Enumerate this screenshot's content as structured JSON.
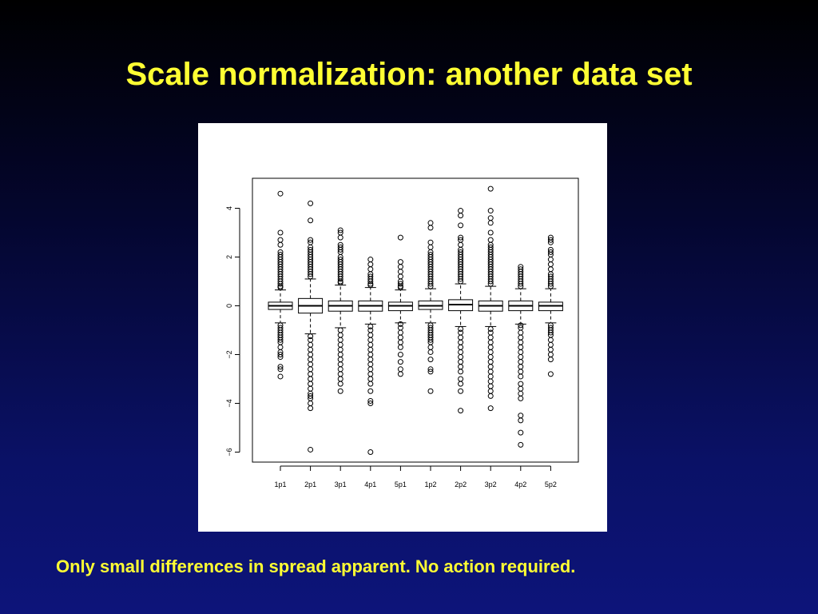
{
  "slide": {
    "title": "Scale normalization: another data set",
    "caption": "Only small differences in spread apparent. No action required."
  },
  "colors": {
    "title": "#ffff33",
    "caption": "#ffff33",
    "plot_background": "#ffffff",
    "ink": "#000000"
  },
  "chart_data": {
    "type": "box",
    "title": "",
    "xlabel": "",
    "ylabel": "",
    "ylim": [
      -6.5,
      5.2
    ],
    "yticks": [
      -6,
      -4,
      -2,
      0,
      2,
      4
    ],
    "categories": [
      "1p1",
      "2p1",
      "3p1",
      "4p1",
      "5p1",
      "1p2",
      "2p2",
      "3p2",
      "4p2",
      "5p2"
    ],
    "boxes": [
      {
        "name": "1p1",
        "q1": -0.15,
        "median": 0.0,
        "q3": 0.15,
        "whisker_low": -0.7,
        "whisker_high": 0.65,
        "outliers": [
          4.6,
          3.0,
          2.7,
          2.5,
          2.2,
          2.1,
          2.0,
          1.9,
          1.8,
          1.7,
          1.6,
          1.5,
          1.4,
          1.3,
          1.2,
          1.1,
          1.0,
          0.9,
          0.8,
          0.75,
          -0.8,
          -0.9,
          -1.0,
          -1.1,
          -1.2,
          -1.3,
          -1.4,
          -1.5,
          -1.7,
          -1.9,
          -2.0,
          -2.1,
          -2.5,
          -2.6,
          -2.9
        ]
      },
      {
        "name": "2p1",
        "q1": -0.3,
        "median": 0.0,
        "q3": 0.3,
        "whisker_low": -1.15,
        "whisker_high": 1.1,
        "outliers": [
          4.2,
          3.5,
          2.7,
          2.6,
          2.4,
          2.3,
          2.2,
          2.1,
          2.0,
          1.9,
          1.8,
          1.7,
          1.6,
          1.5,
          1.4,
          1.3,
          1.2,
          -1.25,
          -1.4,
          -1.6,
          -1.8,
          -2.0,
          -2.2,
          -2.4,
          -2.6,
          -2.8,
          -3.0,
          -3.2,
          -3.4,
          -3.6,
          -3.7,
          -3.8,
          -4.0,
          -4.2,
          -5.9
        ]
      },
      {
        "name": "3p1",
        "q1": -0.22,
        "median": 0.0,
        "q3": 0.2,
        "whisker_low": -0.9,
        "whisker_high": 0.85,
        "outliers": [
          3.1,
          3.0,
          2.8,
          2.5,
          2.4,
          2.3,
          2.2,
          2.0,
          1.9,
          1.8,
          1.7,
          1.6,
          1.5,
          1.4,
          1.3,
          1.2,
          1.1,
          1.0,
          0.95,
          -1.0,
          -1.2,
          -1.4,
          -1.6,
          -1.8,
          -2.0,
          -2.2,
          -2.4,
          -2.6,
          -2.8,
          -3.0,
          -3.2,
          -3.5
        ]
      },
      {
        "name": "4p1",
        "q1": -0.22,
        "median": 0.0,
        "q3": 0.2,
        "whisker_low": -0.75,
        "whisker_high": 0.75,
        "outliers": [
          1.9,
          1.7,
          1.5,
          1.3,
          1.2,
          1.1,
          1.0,
          0.9,
          0.85,
          -0.85,
          -1.0,
          -1.2,
          -1.4,
          -1.6,
          -1.8,
          -2.0,
          -2.2,
          -2.4,
          -2.6,
          -2.8,
          -3.0,
          -3.2,
          -3.5,
          -3.9,
          -4.0,
          -6.0
        ]
      },
      {
        "name": "5p1",
        "q1": -0.2,
        "median": 0.0,
        "q3": 0.15,
        "whisker_low": -0.7,
        "whisker_high": 0.65,
        "outliers": [
          2.8,
          1.8,
          1.6,
          1.4,
          1.2,
          1.0,
          0.9,
          0.8,
          0.75,
          -0.75,
          -0.9,
          -1.1,
          -1.3,
          -1.5,
          -1.7,
          -2.0,
          -2.3,
          -2.6,
          -2.8
        ]
      },
      {
        "name": "1p2",
        "q1": -0.15,
        "median": 0.0,
        "q3": 0.2,
        "whisker_low": -0.7,
        "whisker_high": 0.7,
        "outliers": [
          3.4,
          3.2,
          2.6,
          2.4,
          2.2,
          2.1,
          2.0,
          1.9,
          1.8,
          1.7,
          1.6,
          1.5,
          1.4,
          1.3,
          1.2,
          1.1,
          1.0,
          0.9,
          0.8,
          -0.8,
          -0.9,
          -1.0,
          -1.1,
          -1.2,
          -1.3,
          -1.4,
          -1.5,
          -1.7,
          -1.9,
          -2.2,
          -2.6,
          -2.7,
          -3.5
        ]
      },
      {
        "name": "2p2",
        "q1": -0.2,
        "median": 0.05,
        "q3": 0.25,
        "whisker_low": -0.85,
        "whisker_high": 0.9,
        "outliers": [
          3.9,
          3.7,
          3.3,
          2.8,
          2.7,
          2.5,
          2.3,
          2.2,
          2.1,
          2.0,
          1.9,
          1.8,
          1.7,
          1.6,
          1.5,
          1.4,
          1.3,
          1.2,
          1.1,
          1.0,
          -0.95,
          -1.1,
          -1.3,
          -1.5,
          -1.7,
          -1.9,
          -2.1,
          -2.3,
          -2.5,
          -2.7,
          -3.0,
          -3.2,
          -3.5,
          -4.3
        ]
      },
      {
        "name": "3p2",
        "q1": -0.22,
        "median": 0.0,
        "q3": 0.2,
        "whisker_low": -0.85,
        "whisker_high": 0.8,
        "outliers": [
          4.8,
          3.9,
          3.6,
          3.4,
          3.0,
          2.7,
          2.5,
          2.4,
          2.3,
          2.2,
          2.1,
          2.0,
          1.9,
          1.8,
          1.7,
          1.6,
          1.5,
          1.4,
          1.3,
          1.2,
          1.1,
          1.0,
          0.9,
          -0.95,
          -1.1,
          -1.3,
          -1.5,
          -1.7,
          -1.9,
          -2.1,
          -2.3,
          -2.5,
          -2.7,
          -2.9,
          -3.1,
          -3.3,
          -3.5,
          -3.7,
          -4.2
        ]
      },
      {
        "name": "4p2",
        "q1": -0.2,
        "median": 0.0,
        "q3": 0.2,
        "whisker_low": -0.75,
        "whisker_high": 0.7,
        "outliers": [
          1.6,
          1.5,
          1.4,
          1.3,
          1.2,
          1.1,
          1.0,
          0.9,
          0.8,
          -0.8,
          -0.9,
          -1.1,
          -1.3,
          -1.5,
          -1.7,
          -1.9,
          -2.1,
          -2.3,
          -2.5,
          -2.7,
          -2.9,
          -3.2,
          -3.4,
          -3.6,
          -3.8,
          -4.5,
          -4.7,
          -5.2,
          -5.7
        ]
      },
      {
        "name": "5p2",
        "q1": -0.2,
        "median": 0.0,
        "q3": 0.15,
        "whisker_low": -0.7,
        "whisker_high": 0.7,
        "outliers": [
          2.8,
          2.7,
          2.6,
          2.3,
          2.2,
          2.1,
          1.9,
          1.7,
          1.5,
          1.3,
          1.2,
          1.1,
          1.0,
          0.9,
          0.8,
          -0.8,
          -0.9,
          -1.0,
          -1.1,
          -1.2,
          -1.4,
          -1.6,
          -1.8,
          -2.0,
          -2.2,
          -2.8
        ]
      }
    ],
    "grid": false,
    "legend": "none"
  }
}
